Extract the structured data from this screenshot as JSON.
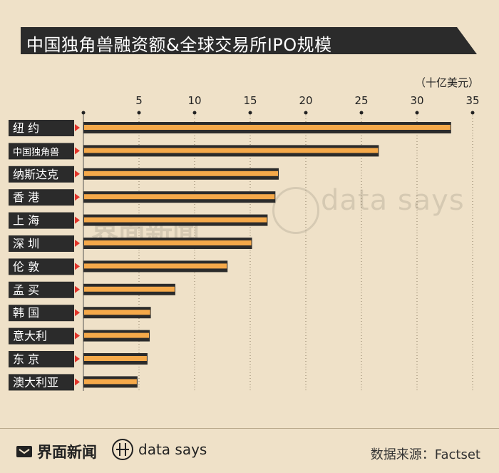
{
  "title": "中国独角兽融资额&全球交易所IPO规模",
  "unit": "（十亿美元）",
  "watermark": {
    "brand": "界面新闻",
    "text": "data says"
  },
  "footer": {
    "brand": "界面新闻",
    "data_says": "data says",
    "source": "数据来源：Factset"
  },
  "colors": {
    "bar": "#f5a94a",
    "bar_shadow": "#2b2b2b",
    "label_bg": "#2b2b2b",
    "marker": "#e2342a",
    "background": "#efe1c8"
  },
  "chart_data": {
    "type": "bar",
    "orientation": "horizontal",
    "categories": [
      "纽 约",
      "中国独角兽",
      "纳斯达克",
      "香 港",
      "上 海",
      "深 圳",
      "伦 敦",
      "孟 买",
      "韩 国",
      "意大利",
      "东 京",
      "澳大利亚"
    ],
    "values": [
      33.0,
      26.5,
      17.5,
      17.2,
      16.5,
      15.1,
      12.9,
      8.2,
      6.0,
      5.9,
      5.7,
      4.8
    ],
    "xticks": [
      5,
      10,
      15,
      20,
      25,
      30,
      35
    ],
    "xlim": [
      0,
      35
    ],
    "grid": true,
    "ylabel": "",
    "xlabel": ""
  }
}
